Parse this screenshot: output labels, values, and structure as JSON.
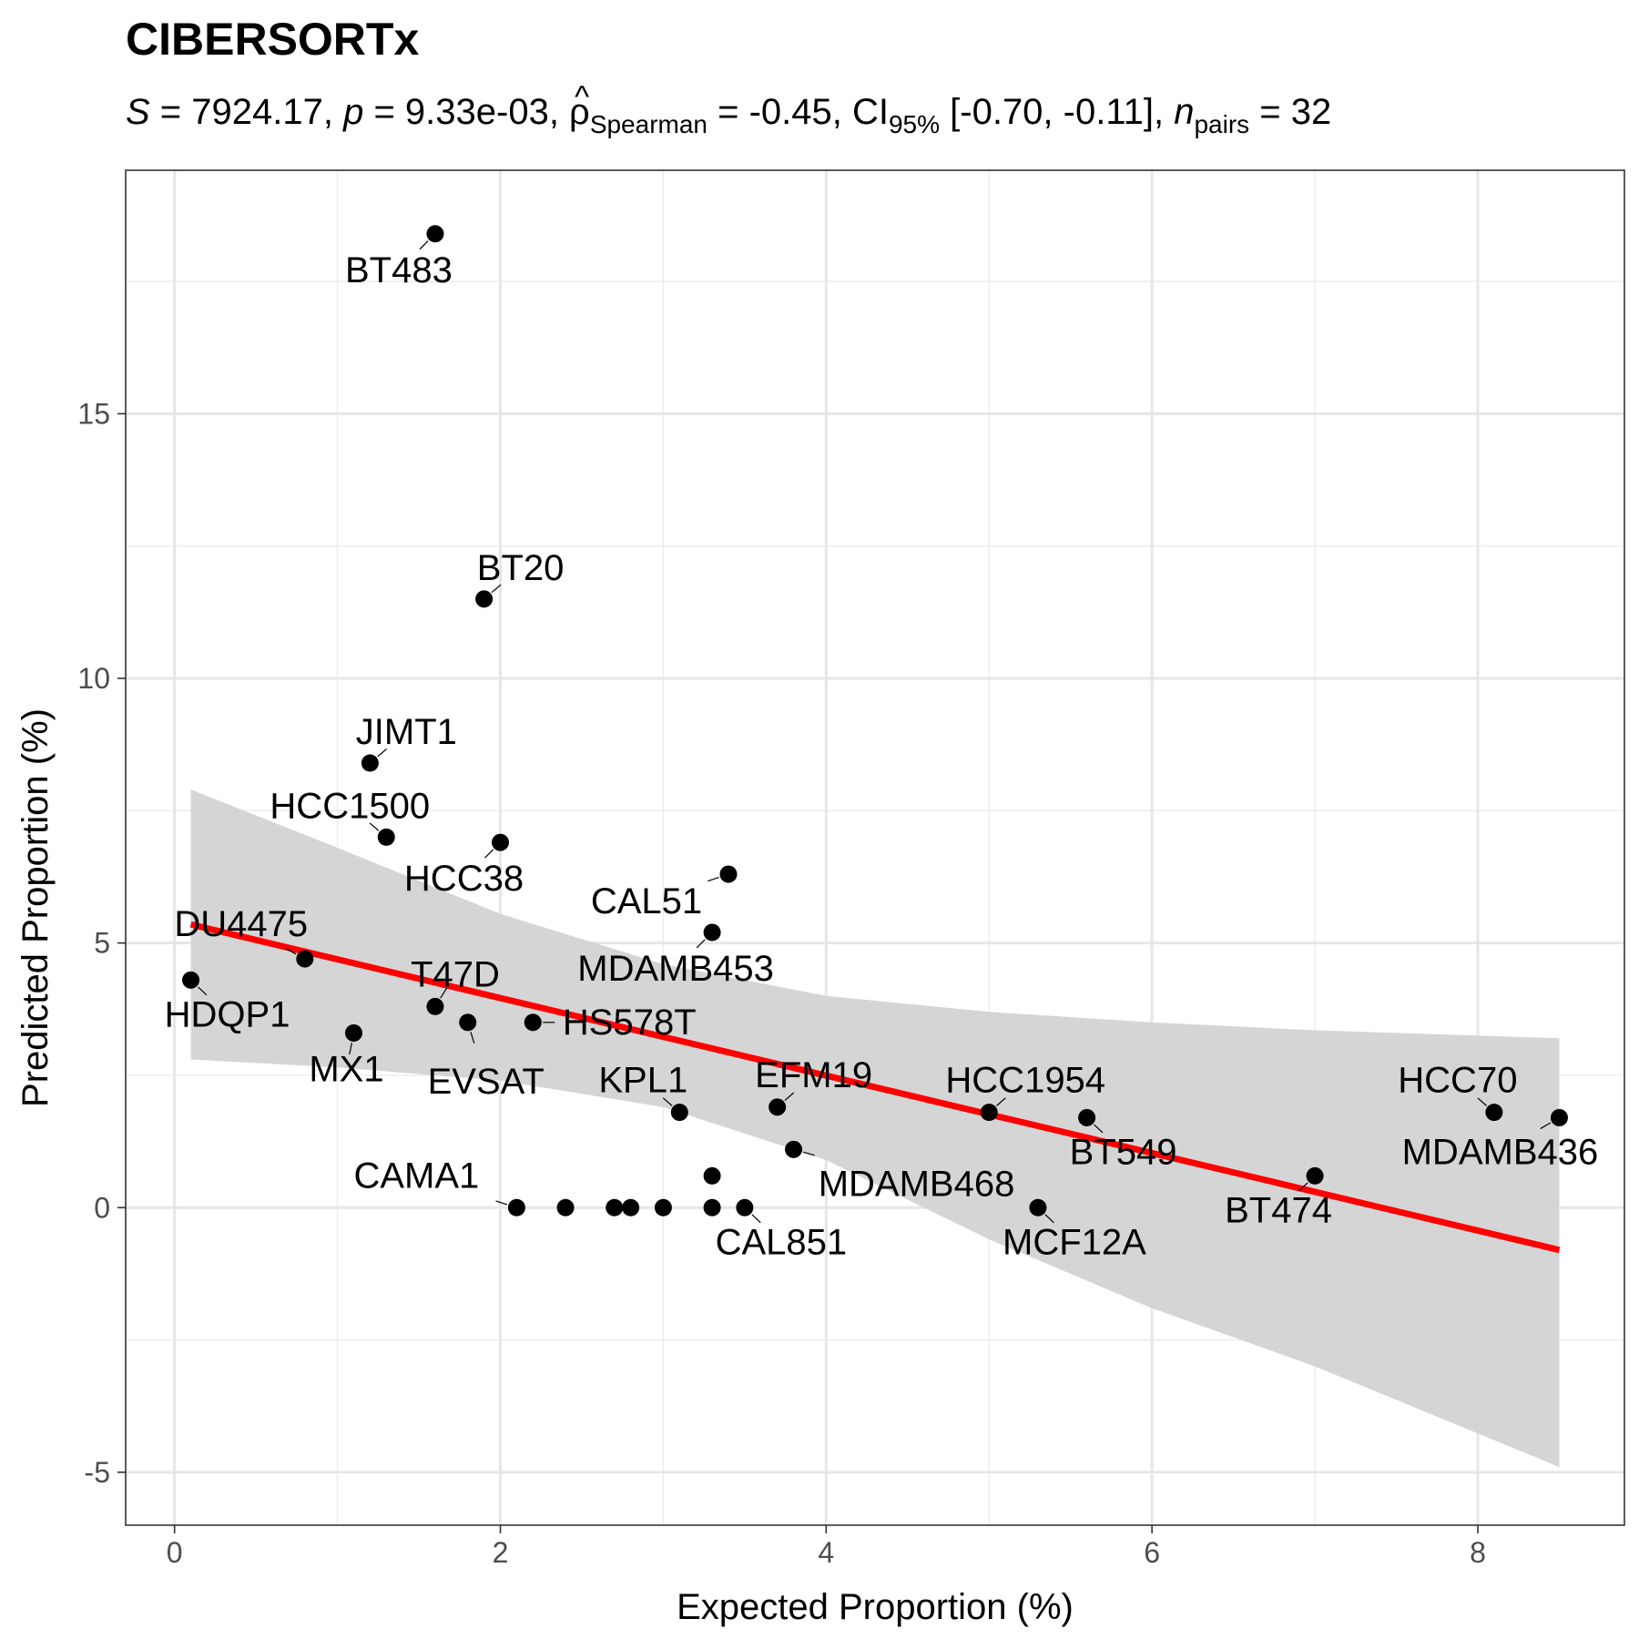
{
  "chart_data": {
    "type": "scatter",
    "title": "CIBERSORTx",
    "subtitle": {
      "s_sym": "S",
      "s_val": " = 7924.17, ",
      "p_sym": "p",
      "p_val": " = 9.33e-03, ",
      "rho_sym": "ρ",
      "rho_hat": "^",
      "rho_sub": "Spearman",
      "rho_val": " = -0.45, ",
      "ci_sym": "CI",
      "ci_sub": "95%",
      "ci_val": " [-0.70, -0.11], ",
      "n_sym": "n",
      "n_sub": "pairs",
      "n_val": " = 32"
    },
    "xlabel": "Expected Proportion (%)",
    "ylabel": "Predicted Proportion (%)",
    "xlim": [
      -0.3,
      8.9
    ],
    "ylim": [
      -6.0,
      19.6
    ],
    "x_ticks": [
      0,
      2,
      4,
      6,
      8
    ],
    "x_tick_labels": [
      "0",
      "2",
      "4",
      "6",
      "8"
    ],
    "y_ticks": [
      -5,
      0,
      5,
      10,
      15
    ],
    "y_tick_labels": [
      "-5",
      "0",
      "5",
      "10",
      "15"
    ],
    "grid": true,
    "points": [
      {
        "label": "BT483",
        "x": 1.6,
        "y": 18.4
      },
      {
        "label": "BT20",
        "x": 1.9,
        "y": 11.5
      },
      {
        "label": "JIMT1",
        "x": 1.2,
        "y": 8.4
      },
      {
        "label": "HCC1500",
        "x": 1.3,
        "y": 7.0
      },
      {
        "label": "HCC38",
        "x": 2.0,
        "y": 6.9
      },
      {
        "label": "CAL51",
        "x": 3.4,
        "y": 6.3
      },
      {
        "label": "MDAMB453",
        "x": 3.3,
        "y": 5.2
      },
      {
        "label": "DU4475",
        "x": 0.8,
        "y": 4.7
      },
      {
        "label": "HDQP1",
        "x": 0.1,
        "y": 4.3
      },
      {
        "label": "T47D",
        "x": 1.6,
        "y": 3.8
      },
      {
        "label": "EVSAT",
        "x": 1.8,
        "y": 3.5
      },
      {
        "label": "HS578T",
        "x": 2.2,
        "y": 3.5
      },
      {
        "label": "MX1",
        "x": 1.1,
        "y": 3.3
      },
      {
        "label": "KPL1",
        "x": 3.1,
        "y": 1.8
      },
      {
        "label": "EFM19",
        "x": 3.7,
        "y": 1.9
      },
      {
        "label": "HCC1954",
        "x": 5.0,
        "y": 1.8
      },
      {
        "label": "BT549",
        "x": 5.6,
        "y": 1.7
      },
      {
        "label": "HCC70",
        "x": 8.1,
        "y": 1.8
      },
      {
        "label": "MDAMB436",
        "x": 8.5,
        "y": 1.7
      },
      {
        "label": "MDAMB468",
        "x": 3.8,
        "y": 1.1
      },
      {
        "label": "",
        "x": 3.3,
        "y": 0.6
      },
      {
        "label": "BT474",
        "x": 7.0,
        "y": 0.6
      },
      {
        "label": "CAMA1",
        "x": 2.1,
        "y": 0.0
      },
      {
        "label": "",
        "x": 2.4,
        "y": 0.0
      },
      {
        "label": "",
        "x": 2.7,
        "y": 0.0
      },
      {
        "label": "",
        "x": 2.8,
        "y": 0.0
      },
      {
        "label": "",
        "x": 3.0,
        "y": 0.0
      },
      {
        "label": "",
        "x": 3.3,
        "y": 0.0
      },
      {
        "label": "CAL851",
        "x": 3.5,
        "y": 0.0
      },
      {
        "label": "MCF12A",
        "x": 5.3,
        "y": 0.0
      }
    ],
    "fit_line": {
      "color": "#ff0000",
      "x": [
        0.1,
        8.5
      ],
      "y": [
        5.35,
        -0.8
      ]
    },
    "confidence_band": {
      "color": "#d3d3d3",
      "x": [
        0.1,
        1.0,
        2.0,
        3.0,
        4.0,
        5.0,
        6.0,
        7.0,
        8.5
      ],
      "lower": [
        2.8,
        2.65,
        2.4,
        1.9,
        0.9,
        -0.6,
        -1.9,
        -3.0,
        -4.9
      ],
      "upper": [
        7.9,
        6.8,
        5.55,
        4.6,
        4.0,
        3.7,
        3.5,
        3.35,
        3.2
      ]
    }
  }
}
